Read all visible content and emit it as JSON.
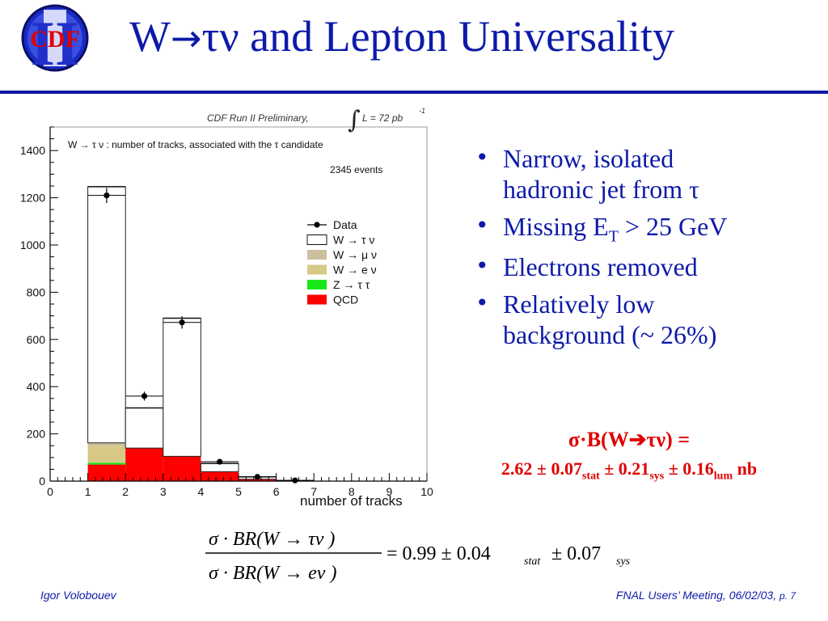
{
  "logo": {
    "text": "CDF",
    "numeral": "II"
  },
  "title": {
    "part1": "W",
    "arrow": "→",
    "part2": "τν",
    "part3": " and Lepton Universality"
  },
  "plot": {
    "header_left": "CDF Run II Preliminary,",
    "header_right": "L = 72 pb",
    "header_exp": "-1",
    "caption": "W → τ ν : number of tracks, associated with the   τ candidate",
    "events": "2345 events",
    "legend": [
      {
        "label": "Data",
        "kind": "data",
        "color": "#000000"
      },
      {
        "label": "W → τ ν",
        "kind": "box",
        "color": "#ffffff"
      },
      {
        "label": "W → μ ν",
        "kind": "box",
        "color": "#cbbf9e"
      },
      {
        "label": "W → e ν",
        "kind": "box",
        "color": "#d8c886"
      },
      {
        "label": "Z → τ τ",
        "kind": "box",
        "color": "#18e818"
      },
      {
        "label": "QCD",
        "kind": "box",
        "color": "#ff0000"
      }
    ]
  },
  "chart_data": {
    "type": "bar",
    "xlabel": "number of tracks",
    "xlim": [
      0,
      10
    ],
    "ylim": [
      0,
      1500
    ],
    "x_ticks": [
      0,
      1,
      2,
      3,
      4,
      5,
      6,
      7,
      8,
      9,
      10
    ],
    "y_ticks": [
      0,
      200,
      400,
      600,
      800,
      1000,
      1200,
      1400
    ],
    "bins": [
      [
        1,
        2
      ],
      [
        2,
        3
      ],
      [
        3,
        4
      ],
      [
        4,
        5
      ],
      [
        5,
        6
      ],
      [
        6,
        7
      ]
    ],
    "stack": [
      {
        "name": "QCD",
        "color": "#ff0000",
        "values": [
          70,
          140,
          105,
          40,
          8,
          0
        ]
      },
      {
        "name": "Z → τ τ",
        "color": "#18e818",
        "values": [
          8,
          0,
          0,
          0,
          0,
          0
        ]
      },
      {
        "name": "W → e ν",
        "color": "#d8c886",
        "values": [
          72,
          0,
          0,
          0,
          0,
          0
        ]
      },
      {
        "name": "W → μ ν",
        "color": "#cbbf9e",
        "values": [
          12,
          0,
          0,
          0,
          0,
          0
        ]
      },
      {
        "name": "W → τ ν",
        "color": "#ffffff",
        "values": [
          1085,
          170,
          585,
          35,
          10,
          2
        ]
      }
    ],
    "data_points": {
      "name": "Data",
      "x": [
        1.5,
        2.5,
        3.5,
        4.5,
        5.5,
        6.5
      ],
      "y": [
        1210,
        360,
        672,
        82,
        18,
        3
      ],
      "err": [
        32,
        19,
        26,
        9,
        4,
        2
      ]
    }
  },
  "bullets": [
    {
      "parts": [
        "Narrow, isolated",
        "hadronic jet from τ"
      ]
    },
    {
      "parts": [
        "Missing E",
        "T",
        " > 25 GeV"
      ]
    },
    {
      "parts": [
        "Electrons removed"
      ]
    },
    {
      "parts": [
        "Relatively low",
        "background (~ 26%)"
      ]
    }
  ],
  "result": {
    "line1": "σ·B(W➔τν) =",
    "val": "2.62 ± 0.07",
    "sub1": "stat",
    "mid1": " ± 0.21",
    "sub2": "sys",
    "mid2": " ± 0.16",
    "sub3": "lum",
    "unit": " nb"
  },
  "formula": {
    "numerator": "σ · BR(W → τν )",
    "denominator": "σ · BR(W → eν )",
    "rhs1": "= 0.99 ± 0.04",
    "sub1": "stat",
    "rhs2": "± 0.07",
    "sub2": "sys"
  },
  "footer": {
    "left": "Igor Volobouev",
    "right": "FNAL Users’ Meeting, 06/02/03,",
    "page": "p. 7"
  }
}
